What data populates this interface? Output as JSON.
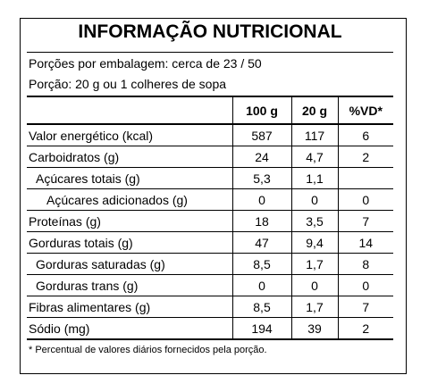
{
  "title": "INFORMAÇÃO NUTRICIONAL",
  "servings_per_package": "Porções por embalagem: cerca de 23 / 50",
  "serving_size": "Porção: 20 g ou 1 colheres de sopa",
  "table": {
    "header": [
      "100 g",
      "20 g",
      "%VD*"
    ],
    "rows": [
      {
        "label": "Valor energético (kcal)",
        "values": [
          "587",
          "117",
          "6"
        ]
      },
      {
        "label": "Carboidratos (g)",
        "values": [
          "24",
          "4,7",
          "2"
        ]
      },
      {
        "label": "Açúcares totais (g)",
        "values": [
          "5,3",
          "1,1"
        ]
      },
      {
        "label": "Açúcares adicionados (g)",
        "values": [
          "0",
          "0",
          "0"
        ]
      },
      {
        "label": "Proteínas (g)",
        "values": [
          "18",
          "3,5",
          "7"
        ]
      },
      {
        "label": "Gorduras totais (g)",
        "values": [
          "47",
          "9,4",
          "14"
        ]
      },
      {
        "label": "Gorduras saturadas (g)",
        "values": [
          "8,5",
          "1,7",
          "8"
        ]
      },
      {
        "label": "Gorduras trans (g)",
        "values": [
          "0",
          "0",
          "0"
        ]
      },
      {
        "label": "Fibras alimentares (g)",
        "values": [
          "8,5",
          "1,7",
          "7"
        ]
      },
      {
        "label": "Sódio (mg)",
        "values": [
          "194",
          "39",
          "2"
        ]
      }
    ]
  },
  "footnote": "* Percentual de valores diários fornecidos pela porção."
}
